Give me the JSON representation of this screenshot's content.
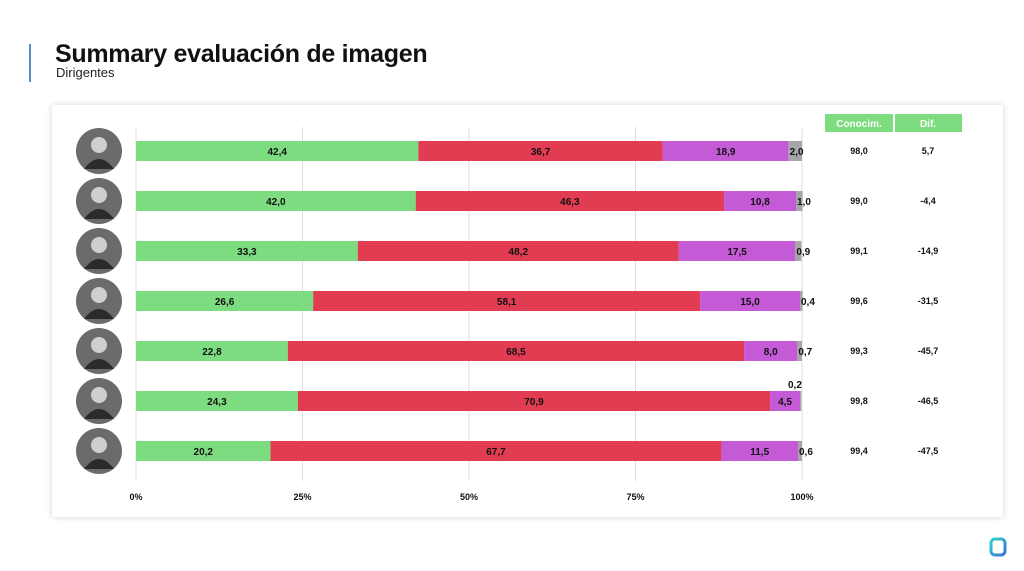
{
  "header": {
    "title": "Summary evaluación de imagen",
    "subtitle": "Dirigentes"
  },
  "columns": {
    "conocim": "Conocim.",
    "dif": "Dif."
  },
  "colors": {
    "positive": "#7ddc7f",
    "negative": "#e23c52",
    "neutral": "#c45ad6",
    "ns": "#a6a6a6",
    "header_bg": "#7ddc7f",
    "accent": "#5b8ec9"
  },
  "chart_data": {
    "type": "bar",
    "orientation": "horizontal",
    "stacked": true,
    "grid": true,
    "xlim": [
      0,
      100
    ],
    "x_ticks": [
      "0%",
      "25%",
      "50%",
      "75%",
      "100%"
    ],
    "rows": [
      {
        "positive": "42,4",
        "negative": "36,7",
        "neutral": "18,9",
        "ns": "2,0",
        "conocim": "98,0",
        "dif": "5,7"
      },
      {
        "positive": "42,0",
        "negative": "46,3",
        "neutral": "10,8",
        "ns": "1,0",
        "conocim": "99,0",
        "dif": "-4,4"
      },
      {
        "positive": "33,3",
        "negative": "48,2",
        "neutral": "17,5",
        "ns": "0,9",
        "conocim": "99,1",
        "dif": "-14,9"
      },
      {
        "positive": "26,6",
        "negative": "58,1",
        "neutral": "15,0",
        "ns": "0,4",
        "conocim": "99,6",
        "dif": "-31,5"
      },
      {
        "positive": "22,8",
        "negative": "68,5",
        "neutral": "8,0",
        "ns": "0,7",
        "conocim": "99,3",
        "dif": "-45,7"
      },
      {
        "positive": "24,3",
        "negative": "70,9",
        "neutral": "4,5",
        "ns": "0,2",
        "conocim": "99,8",
        "dif": "-46,5"
      },
      {
        "positive": "20,2",
        "negative": "67,7",
        "neutral": "11,5",
        "ns": "0,6",
        "conocim": "99,4",
        "dif": "-47,5"
      }
    ]
  }
}
